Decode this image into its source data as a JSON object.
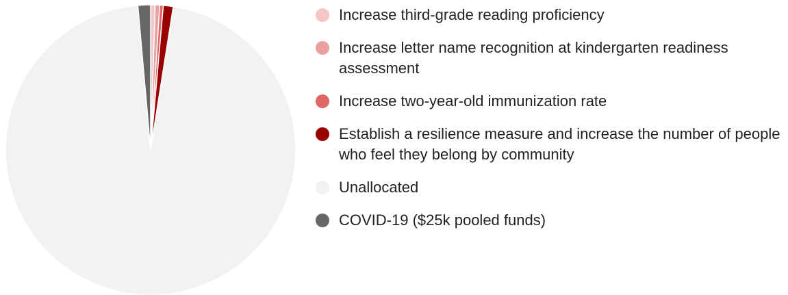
{
  "chart_data": {
    "type": "pie",
    "categories": [
      "Increase third-grade reading proficiency",
      "Increase letter name recognition at kindergarten readiness assessment",
      "Increase two-year-old immunization rate",
      "Establish a resilience measure and increase the number of people who feel they belong by community",
      "Unallocated",
      "COVID-19 ($25k pooled funds)"
    ],
    "values": [
      0.5,
      0.5,
      0.4,
      1.1,
      96.1,
      1.4
    ],
    "colors": [
      "#f4c7c7",
      "#eba0a0",
      "#e06666",
      "#990000",
      "#f2f2f2",
      "#666666"
    ],
    "legend": "right"
  }
}
